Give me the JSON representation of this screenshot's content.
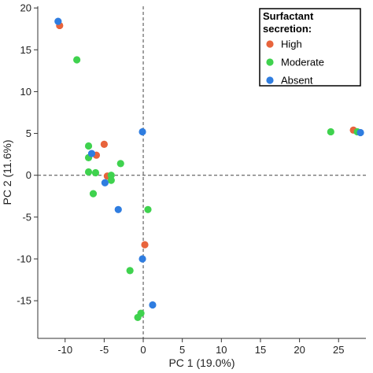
{
  "chart_data": {
    "type": "scatter",
    "xlabel": "PC 1 (19.0%)",
    "ylabel": "PC 2 (11.6%)",
    "xlim": [
      -13.5,
      28.5
    ],
    "ylim": [
      -19.5,
      20.2
    ],
    "xticks": [
      -10,
      -5,
      0,
      5,
      10,
      15,
      20,
      25
    ],
    "yticks": [
      -15,
      -10,
      -5,
      0,
      5,
      10,
      15,
      20
    ],
    "reference_lines": {
      "x": 0,
      "y": 0,
      "style": "dashed"
    },
    "grid": false,
    "legend": {
      "title_lines": [
        "Surfactant",
        "secretion:"
      ],
      "placement": "top-right"
    },
    "series": [
      {
        "name": "High",
        "color": "#e8643c",
        "points": [
          [
            -10.7,
            17.9
          ],
          [
            -5.0,
            3.7
          ],
          [
            -6.0,
            2.4
          ],
          [
            -4.6,
            -0.1
          ],
          [
            0.2,
            -8.3
          ],
          [
            26.9,
            5.4
          ]
        ]
      },
      {
        "name": "Moderate",
        "color": "#3fd24e",
        "points": [
          [
            -8.5,
            13.8
          ],
          [
            -7.0,
            3.5
          ],
          [
            -7.0,
            2.1
          ],
          [
            -2.9,
            1.4
          ],
          [
            -6.1,
            0.3
          ],
          [
            -7.0,
            0.4
          ],
          [
            -4.1,
            0.0
          ],
          [
            -4.1,
            -0.6
          ],
          [
            -6.4,
            -2.2
          ],
          [
            0.6,
            -4.1
          ],
          [
            -1.7,
            -11.4
          ],
          [
            -0.3,
            -16.5
          ],
          [
            -0.7,
            -17.0
          ],
          [
            24.0,
            5.2
          ],
          [
            27.4,
            5.2
          ]
        ]
      },
      {
        "name": "Absent",
        "color": "#2f7de0",
        "points": [
          [
            -10.9,
            18.4
          ],
          [
            -6.6,
            2.6
          ],
          [
            -4.9,
            -0.9
          ],
          [
            -3.2,
            -4.1
          ],
          [
            -0.1,
            5.2
          ],
          [
            -0.1,
            -10.0
          ],
          [
            1.2,
            -15.5
          ],
          [
            27.8,
            5.1
          ]
        ]
      }
    ]
  }
}
